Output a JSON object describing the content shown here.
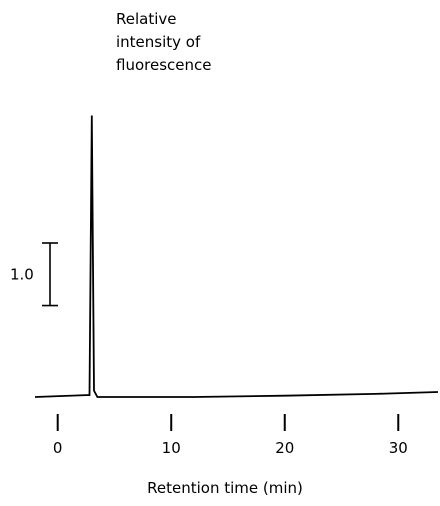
{
  "chart_data": {
    "type": "line",
    "title": "",
    "ylabel_lines": [
      "Relative",
      "intensity of",
      "fluorescence"
    ],
    "xlabel": "Retention time (min)",
    "x_ticks": [
      0,
      10,
      20,
      30
    ],
    "x_tick_labels": [
      "0",
      "10",
      "20",
      "30"
    ],
    "xlim": [
      -2,
      33.5
    ],
    "ylim": [
      0,
      4.7
    ],
    "scale_bar": {
      "label": "1.0",
      "value": 1.0
    },
    "grid": false,
    "legend": "none",
    "series": [
      {
        "x": [
          -2,
          2.5,
          2.8,
          3.0,
          3.2,
          3.5,
          4.5,
          12,
          20,
          28,
          33.5
        ],
        "y": [
          0.0,
          0.03,
          0.03,
          4.5,
          0.1,
          0.0,
          0.0,
          0.0,
          0.02,
          0.05,
          0.08
        ]
      }
    ],
    "line_color": "#000000"
  }
}
